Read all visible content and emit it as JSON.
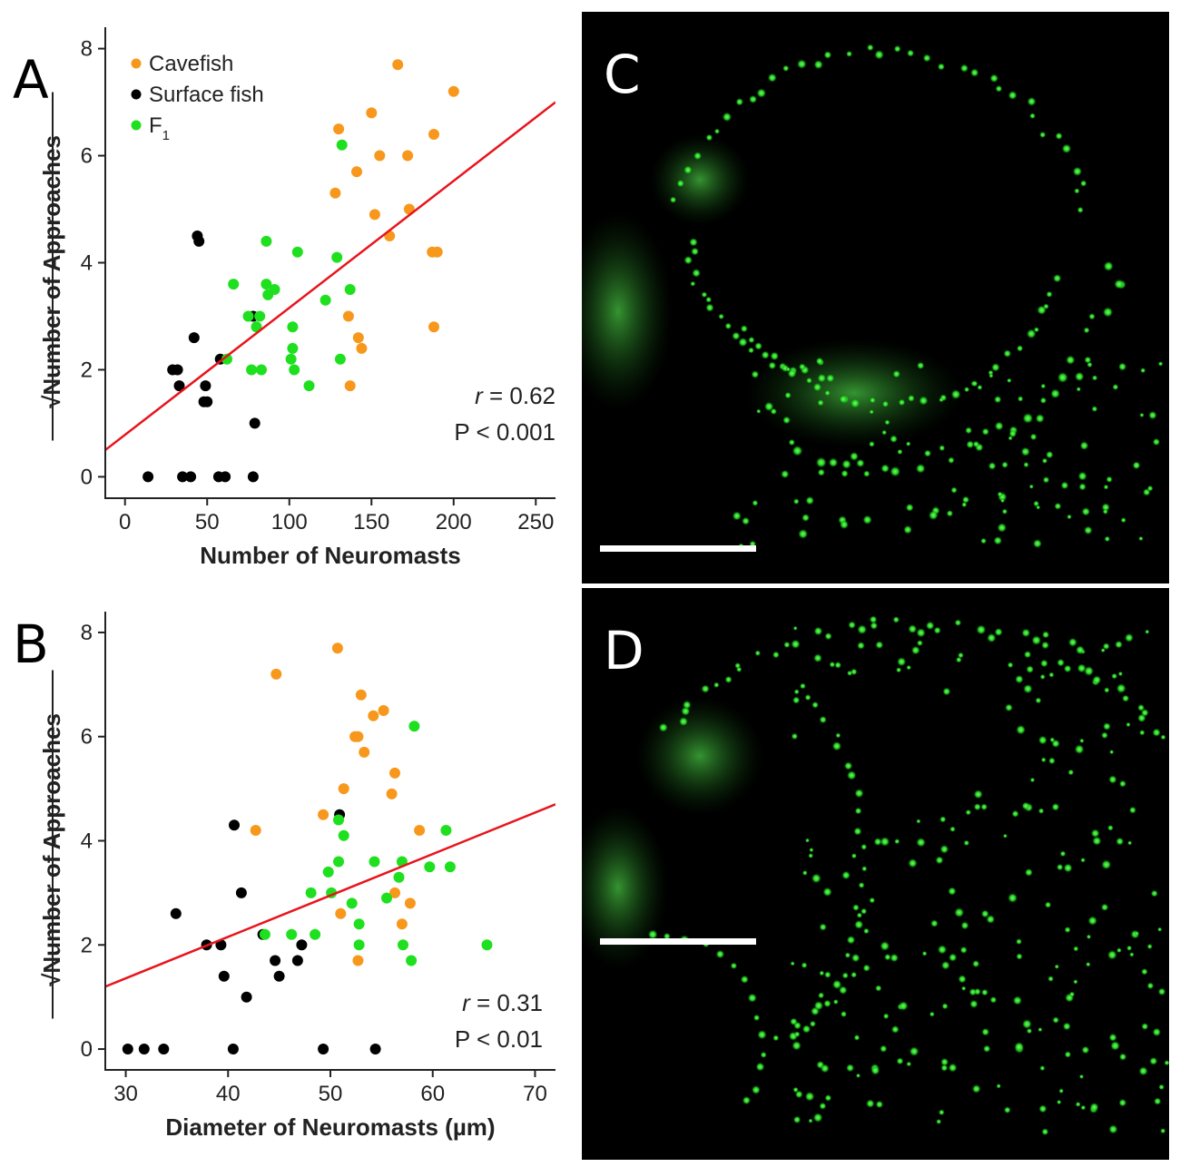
{
  "chart_data": [
    {
      "panel": "A",
      "type": "scatter",
      "xlabel": "Number of Neuromasts",
      "ylabel": "√Number of Approaches",
      "xlim": [
        -12,
        262
      ],
      "ylim": [
        -0.4,
        8.4
      ],
      "xticks": [
        0,
        50,
        100,
        150,
        200,
        250
      ],
      "yticks": [
        0,
        2,
        4,
        6,
        8
      ],
      "legend": {
        "position": "top-left",
        "entries": [
          "Cavefish",
          "Surface fish",
          "F1"
        ]
      },
      "stats": {
        "r_label": "r",
        "r_value": "= 0.62",
        "p": "P < 0.001"
      },
      "fit_line": {
        "x": [
          -12,
          262
        ],
        "y": [
          0.5,
          7.0
        ],
        "color": "#e8141c"
      },
      "series": [
        {
          "name": "Cavefish",
          "color": "#f7981d",
          "points": [
            [
              166,
              7.7
            ],
            [
              200,
              7.2
            ],
            [
              130,
              6.5
            ],
            [
              150,
              6.8
            ],
            [
              155,
              6.0
            ],
            [
              172,
              6.0
            ],
            [
              188,
              6.4
            ],
            [
              128,
              5.3
            ],
            [
              141,
              5.7
            ],
            [
              173,
              5.0
            ],
            [
              152,
              4.9
            ],
            [
              161,
              4.5
            ],
            [
              187,
              4.2
            ],
            [
              190,
              4.2
            ],
            [
              188,
              2.8
            ],
            [
              136,
              3.0
            ],
            [
              142,
              2.6
            ],
            [
              144,
              2.4
            ],
            [
              137,
              1.7
            ]
          ]
        },
        {
          "name": "Surface fish",
          "color": "#000000",
          "points": [
            [
              44,
              4.5
            ],
            [
              45,
              4.4
            ],
            [
              42,
              2.6
            ],
            [
              29,
              2.0
            ],
            [
              32,
              2.0
            ],
            [
              33,
              1.7
            ],
            [
              58,
              2.2
            ],
            [
              49,
              1.7
            ],
            [
              48,
              1.4
            ],
            [
              50,
              1.4
            ],
            [
              78,
              3.0
            ],
            [
              79,
              1.0
            ],
            [
              14,
              0.0
            ],
            [
              35,
              0.0
            ],
            [
              40,
              0.0
            ],
            [
              57,
              0.0
            ],
            [
              61,
              0.0
            ],
            [
              78,
              0.0
            ]
          ]
        },
        {
          "name": "F1",
          "color": "#1ee01e",
          "points": [
            [
              132,
              6.2
            ],
            [
              86,
              4.4
            ],
            [
              105,
              4.2
            ],
            [
              129,
              4.1
            ],
            [
              66,
              3.6
            ],
            [
              86,
              3.6
            ],
            [
              87,
              3.4
            ],
            [
              91,
              3.5
            ],
            [
              137,
              3.5
            ],
            [
              122,
              3.3
            ],
            [
              75,
              3.0
            ],
            [
              82,
              3.0
            ],
            [
              80,
              2.8
            ],
            [
              102,
              2.8
            ],
            [
              102,
              2.4
            ],
            [
              62,
              2.2
            ],
            [
              101,
              2.2
            ],
            [
              131,
              2.2
            ],
            [
              77,
              2.0
            ],
            [
              83,
              2.0
            ],
            [
              103,
              2.0
            ],
            [
              112,
              1.7
            ]
          ]
        }
      ]
    },
    {
      "panel": "B",
      "type": "scatter",
      "xlabel": "Diameter of Neuromasts (µm)",
      "ylabel": "√Number of Approaches",
      "xlim": [
        28,
        72
      ],
      "ylim": [
        -0.4,
        8.4
      ],
      "xticks": [
        30,
        40,
        50,
        60,
        70
      ],
      "yticks": [
        0,
        2,
        4,
        6,
        8
      ],
      "stats": {
        "r_label": "r",
        "r_value": "= 0.31",
        "p": "P < 0.01"
      },
      "fit_line": {
        "x": [
          28,
          72
        ],
        "y": [
          1.2,
          4.7
        ],
        "color": "#e8141c"
      },
      "series": [
        {
          "name": "Cavefish",
          "color": "#f7981d",
          "points": [
            [
              50.7,
              7.7
            ],
            [
              44.7,
              7.2
            ],
            [
              53.0,
              6.8
            ],
            [
              54.2,
              6.4
            ],
            [
              55.2,
              6.5
            ],
            [
              52.4,
              6.0
            ],
            [
              52.7,
              6.0
            ],
            [
              53.3,
              5.7
            ],
            [
              56.3,
              5.3
            ],
            [
              56.0,
              4.9
            ],
            [
              51.3,
              5.0
            ],
            [
              49.3,
              4.5
            ],
            [
              42.7,
              4.2
            ],
            [
              58.7,
              4.2
            ],
            [
              56.3,
              3.0
            ],
            [
              57.8,
              2.8
            ],
            [
              57.0,
              2.4
            ],
            [
              51.0,
              2.6
            ],
            [
              52.7,
              1.7
            ]
          ]
        },
        {
          "name": "Surface fish",
          "color": "#000000",
          "points": [
            [
              40.6,
              4.3
            ],
            [
              50.9,
              4.5
            ],
            [
              34.9,
              2.6
            ],
            [
              41.3,
              3.0
            ],
            [
              37.9,
              2.0
            ],
            [
              39.3,
              2.0
            ],
            [
              43.4,
              2.2
            ],
            [
              47.2,
              2.0
            ],
            [
              44.6,
              1.7
            ],
            [
              46.8,
              1.7
            ],
            [
              39.6,
              1.4
            ],
            [
              45.0,
              1.4
            ],
            [
              41.8,
              1.0
            ],
            [
              30.2,
              0.0
            ],
            [
              31.8,
              0.0
            ],
            [
              33.7,
              0.0
            ],
            [
              40.5,
              0.0
            ],
            [
              49.3,
              0.0
            ],
            [
              54.4,
              0.0
            ]
          ]
        },
        {
          "name": "F1",
          "color": "#1ee01e",
          "points": [
            [
              58.2,
              6.2
            ],
            [
              50.8,
              4.4
            ],
            [
              51.3,
              4.1
            ],
            [
              61.3,
              4.2
            ],
            [
              50.8,
              3.6
            ],
            [
              54.3,
              3.6
            ],
            [
              57.0,
              3.6
            ],
            [
              59.7,
              3.5
            ],
            [
              61.7,
              3.5
            ],
            [
              49.8,
              3.4
            ],
            [
              56.7,
              3.3
            ],
            [
              48.1,
              3.0
            ],
            [
              50.1,
              3.0
            ],
            [
              55.5,
              2.9
            ],
            [
              52.1,
              2.8
            ],
            [
              52.8,
              2.4
            ],
            [
              43.6,
              2.2
            ],
            [
              46.2,
              2.2
            ],
            [
              48.5,
              2.2
            ],
            [
              65.3,
              2.0
            ],
            [
              52.8,
              2.0
            ],
            [
              57.1,
              2.0
            ],
            [
              57.9,
              1.7
            ]
          ]
        }
      ]
    }
  ],
  "micrographs": [
    {
      "panel": "C",
      "scale_bar": true
    },
    {
      "panel": "D",
      "scale_bar": true
    }
  ]
}
